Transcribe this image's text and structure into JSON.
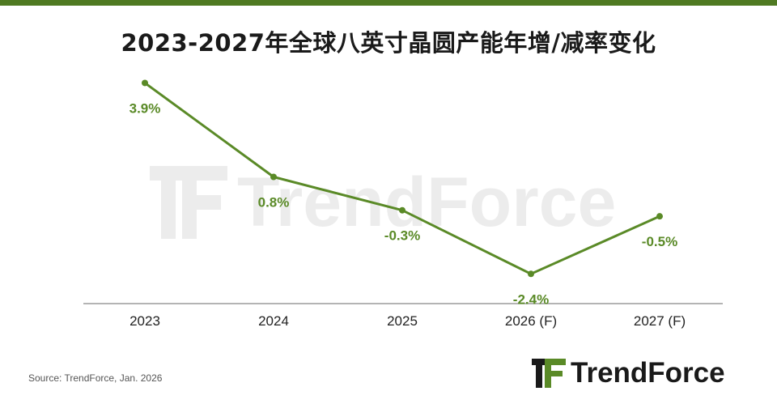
{
  "colors": {
    "accent": "#5a8a27",
    "top_bar": "#4f7a22",
    "text_dark": "#1a1a1a",
    "axis": "#888888"
  },
  "title": "2023-2027年全球八英寸晶圆产能年增/减率变化",
  "source": "Source: TrendForce, Jan. 2026",
  "brand": {
    "name": "TrendForce",
    "logo_icon": "trendforce-logo-icon"
  },
  "watermark": "TrendForce",
  "chart_data": {
    "type": "line",
    "title": "2023-2027年全球八英寸晶圆产能年增/减率变化",
    "xlabel": "",
    "ylabel": "",
    "categories": [
      "2023",
      "2024",
      "2025",
      "2026 (F)",
      "2027 (F)"
    ],
    "series": [
      {
        "values": [
          3.9,
          0.8,
          -0.3,
          -2.4,
          -0.5
        ],
        "labels": [
          "3.9%",
          "0.8%",
          "-0.3%",
          "-2.4%",
          "-0.5%"
        ]
      }
    ],
    "ylim": [
      -3.3,
      4.5
    ],
    "grid": false,
    "legend": "none"
  }
}
